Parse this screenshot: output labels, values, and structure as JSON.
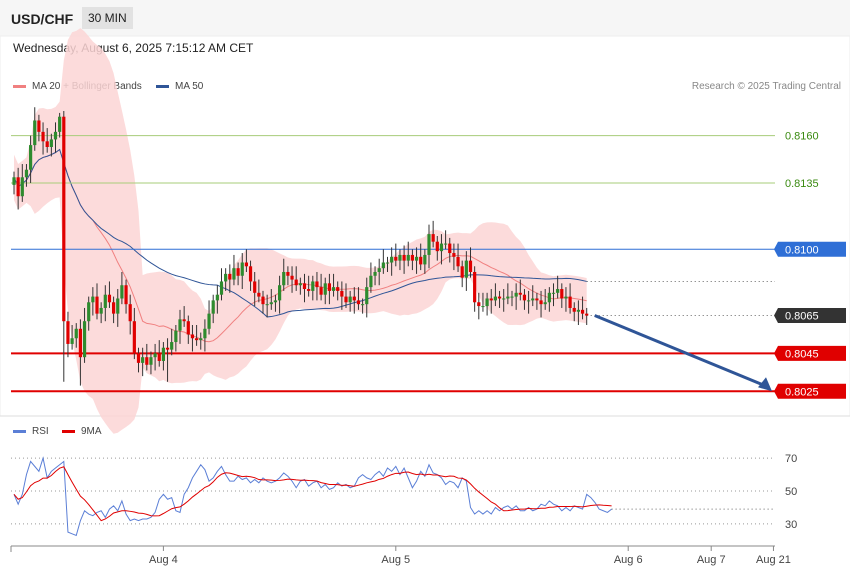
{
  "header": {
    "symbol": "USD/CHF",
    "timeframe": "30 MIN",
    "datetime": "Wednesday, August 6, 2025 7:15:12 AM CET"
  },
  "legend": {
    "ma20": {
      "label": "MA 20 + Bollinger Bands",
      "color": "#f08080"
    },
    "ma50": {
      "label": "MA 50",
      "color": "#2f5597"
    },
    "rsi": {
      "label": "RSI",
      "color": "#5b7fd6"
    },
    "ma9": {
      "label": "9MA",
      "color": "#e00000"
    }
  },
  "credit": "Research © 2025 Trading Central",
  "chart_data": [
    {
      "type": "candlestick",
      "ylim": [
        0.8013,
        0.8201
      ],
      "current_price": 0.8065,
      "levels": [
        {
          "value": 0.816,
          "label": "0.8160",
          "kind": "resistance",
          "color": "#a7cc7a",
          "text_color": "#3a8a10"
        },
        {
          "value": 0.8135,
          "label": "0.8135",
          "kind": "resistance",
          "color": "#a7cc7a",
          "text_color": "#3a8a10"
        },
        {
          "value": 0.81,
          "label": "0.8100",
          "kind": "pivot",
          "color": "#2f6fd6",
          "text_color": "#ffffff"
        },
        {
          "value": 0.8065,
          "label": "0.8065",
          "kind": "last",
          "color": "#333333",
          "text_color": "#ffffff"
        },
        {
          "value": 0.8045,
          "label": "0.8045",
          "kind": "support",
          "color": "#e00000",
          "text_color": "#ffffff"
        },
        {
          "value": 0.8025,
          "label": "0.8025",
          "kind": "support",
          "color": "#e00000",
          "text_color": "#ffffff"
        }
      ],
      "close": [
        0.8138,
        0.8128,
        0.8138,
        0.8142,
        0.8155,
        0.8168,
        0.8162,
        0.8157,
        0.8154,
        0.8158,
        0.8162,
        0.817,
        0.8062,
        0.805,
        0.8053,
        0.8058,
        0.8043,
        0.8062,
        0.8072,
        0.8075,
        0.8066,
        0.8069,
        0.8076,
        0.8072,
        0.8066,
        0.8074,
        0.8081,
        0.8071,
        0.8062,
        0.8045,
        0.804,
        0.8043,
        0.8039,
        0.8043,
        0.8045,
        0.8041,
        0.8048,
        0.8047,
        0.8051,
        0.8057,
        0.8063,
        0.8062,
        0.8055,
        0.8053,
        0.8052,
        0.8053,
        0.8058,
        0.8066,
        0.8073,
        0.8076,
        0.8083,
        0.8087,
        0.8084,
        0.809,
        0.8086,
        0.8093,
        0.8091,
        0.8083,
        0.8077,
        0.8075,
        0.8071,
        0.8071,
        0.8072,
        0.8073,
        0.8081,
        0.8088,
        0.8086,
        0.8084,
        0.8081,
        0.8082,
        0.8079,
        0.8078,
        0.8083,
        0.808,
        0.8076,
        0.8082,
        0.8078,
        0.808,
        0.8078,
        0.8075,
        0.8072,
        0.8075,
        0.8073,
        0.8071,
        0.8071,
        0.808,
        0.8086,
        0.8088,
        0.809,
        0.8093,
        0.8093,
        0.8096,
        0.8094,
        0.8097,
        0.8094,
        0.8097,
        0.8094,
        0.8096,
        0.8092,
        0.8097,
        0.8108,
        0.8104,
        0.8099,
        0.8103,
        0.8103,
        0.8098,
        0.8096,
        0.8091,
        0.8085,
        0.8094,
        0.8088,
        0.8072,
        0.807,
        0.807,
        0.8074,
        0.8073,
        0.8075,
        0.8074,
        0.8074,
        0.8075,
        0.8075,
        0.8077,
        0.8076,
        0.8073,
        0.8073,
        0.8074,
        0.8073,
        0.8071,
        0.8072,
        0.8077,
        0.8077,
        0.8079,
        0.8074,
        0.8075,
        0.8069,
        0.8067,
        0.8068,
        0.8066,
        0.8065
      ]
    },
    {
      "type": "line",
      "ylim": [
        19,
        78
      ],
      "yticks": [
        "70",
        "50",
        "30"
      ],
      "ytick_values": [
        70,
        50,
        30
      ],
      "x_labels": [
        "Aug 4",
        "Aug 5",
        "Aug 6",
        "Aug 7",
        "Aug 21"
      ],
      "x_label_index": [
        36,
        92,
        148,
        168,
        183
      ],
      "rsi": [
        48,
        42,
        48,
        60,
        68,
        65,
        62,
        70,
        58,
        62,
        64,
        66,
        68,
        25,
        24,
        23,
        32,
        38,
        36,
        35,
        37,
        38,
        34,
        39,
        41,
        38,
        44,
        36,
        32,
        33,
        32,
        33,
        33,
        34,
        37,
        45,
        48,
        45,
        46,
        38,
        37,
        48,
        52,
        58,
        62,
        66,
        63,
        56,
        58,
        62,
        65,
        60,
        56,
        56,
        59,
        57,
        58,
        55,
        57,
        55,
        58,
        56,
        55,
        56,
        58,
        61,
        59,
        56,
        52,
        56,
        57,
        53,
        55,
        56,
        52,
        54,
        51,
        52,
        55,
        53,
        54,
        52,
        53,
        58,
        60,
        58,
        57,
        60,
        62,
        59,
        64,
        62,
        65,
        60,
        64,
        58,
        52,
        56,
        62,
        59,
        66,
        61,
        60,
        58,
        54,
        56,
        55,
        52,
        58,
        56,
        40,
        36,
        38,
        36,
        38,
        36,
        40,
        38,
        40,
        41,
        39,
        41,
        38,
        38,
        40,
        38,
        39,
        42,
        41,
        44,
        42,
        41,
        38,
        40,
        38,
        41,
        40,
        39,
        48,
        46,
        43,
        39,
        38,
        37,
        39
      ]
    }
  ],
  "axis": {
    "x_labels": [
      "Aug 4",
      "Aug 5",
      "Aug 6",
      "Aug 7",
      "Aug 21"
    ]
  }
}
